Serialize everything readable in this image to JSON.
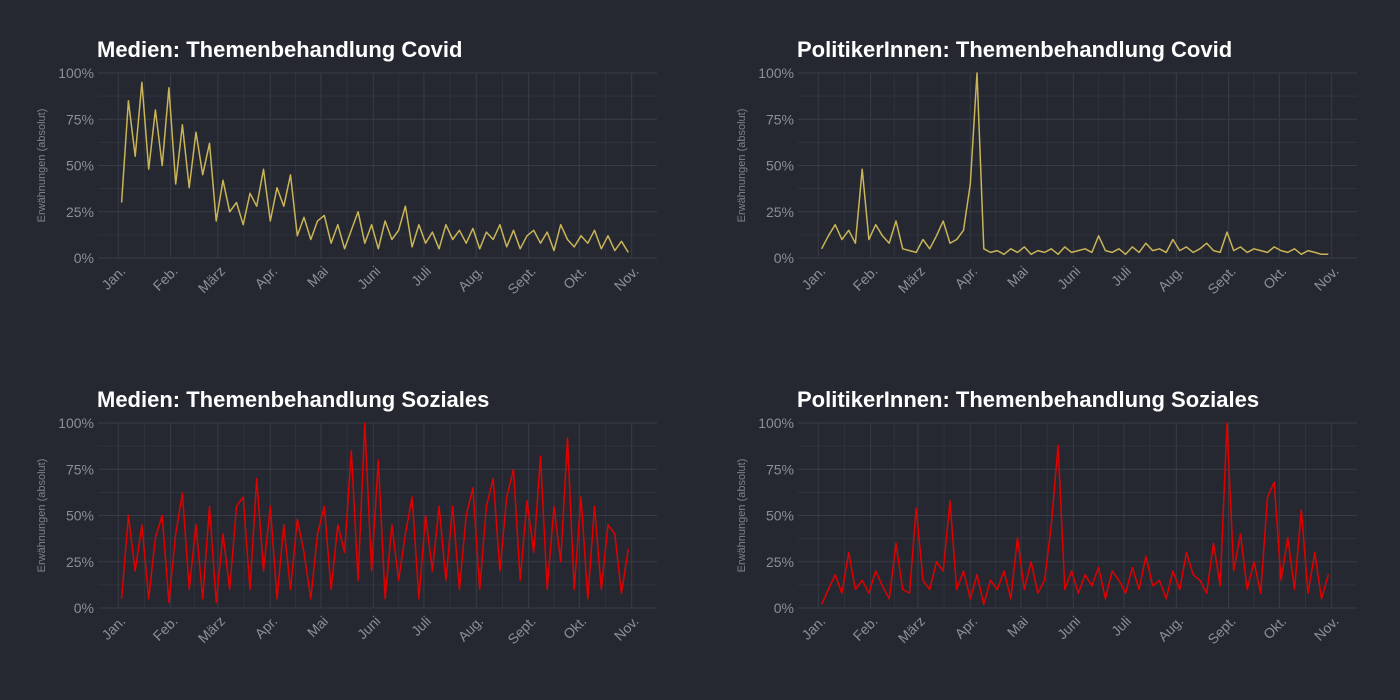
{
  "chart_data": [
    {
      "type": "line",
      "title": "Medien: Themenbehandlung Covid",
      "y_label": "Erwähnungen (absolut)",
      "color": "#c9b458",
      "grid": true,
      "xlim": [
        -11,
        320
      ],
      "ylim": [
        0,
        100
      ],
      "xticks": [
        {
          "value": 1,
          "label": "Jan."
        },
        {
          "value": 32,
          "label": "Feb."
        },
        {
          "value": 60,
          "label": "März"
        },
        {
          "value": 91,
          "label": "Apr."
        },
        {
          "value": 121,
          "label": "Mai"
        },
        {
          "value": 152,
          "label": "Juni"
        },
        {
          "value": 182,
          "label": "Juli"
        },
        {
          "value": 213,
          "label": "Aug."
        },
        {
          "value": 244,
          "label": "Sept."
        },
        {
          "value": 274,
          "label": "Okt."
        },
        {
          "value": 305,
          "label": "Nov."
        }
      ],
      "yticks": [
        {
          "value": 0,
          "label": "0%"
        },
        {
          "value": 25,
          "label": "25%"
        },
        {
          "value": 50,
          "label": "50%"
        },
        {
          "value": 75,
          "label": "75%"
        },
        {
          "value": 100,
          "label": "100%"
        }
      ],
      "x": [
        3,
        7,
        11,
        15,
        19,
        23,
        27,
        31,
        35,
        39,
        43,
        47,
        51,
        55,
        59,
        63,
        67,
        71,
        75,
        79,
        83,
        87,
        91,
        95,
        99,
        103,
        107,
        111,
        115,
        119,
        123,
        127,
        131,
        135,
        139,
        143,
        147,
        151,
        155,
        159,
        163,
        167,
        171,
        175,
        179,
        183,
        187,
        191,
        195,
        199,
        203,
        207,
        211,
        215,
        219,
        223,
        227,
        231,
        235,
        239,
        243,
        247,
        251,
        255,
        259,
        263,
        267,
        271,
        275,
        279,
        283,
        287,
        291,
        295,
        299,
        303
      ],
      "values": [
        30,
        85,
        55,
        95,
        48,
        80,
        50,
        92,
        40,
        72,
        38,
        68,
        45,
        62,
        20,
        42,
        25,
        30,
        18,
        35,
        28,
        48,
        20,
        38,
        28,
        45,
        12,
        22,
        10,
        20,
        23,
        8,
        18,
        5,
        15,
        25,
        8,
        18,
        5,
        20,
        10,
        15,
        28,
        6,
        18,
        8,
        14,
        5,
        18,
        10,
        15,
        8,
        16,
        5,
        14,
        10,
        18,
        6,
        15,
        5,
        12,
        15,
        8,
        14,
        4,
        18,
        10,
        6,
        12,
        8,
        15,
        5,
        12,
        4,
        9,
        3
      ]
    },
    {
      "type": "line",
      "title": "PolitikerInnen: Themenbehandlung Covid",
      "y_label": "Erwähnungen (absolut)",
      "color": "#c9b458",
      "grid": true,
      "xlim": [
        -11,
        320
      ],
      "ylim": [
        0,
        100
      ],
      "xticks": [
        {
          "value": 1,
          "label": "Jan."
        },
        {
          "value": 32,
          "label": "Feb."
        },
        {
          "value": 60,
          "label": "März"
        },
        {
          "value": 91,
          "label": "Apr."
        },
        {
          "value": 121,
          "label": "Mai"
        },
        {
          "value": 152,
          "label": "Juni"
        },
        {
          "value": 182,
          "label": "Juli"
        },
        {
          "value": 213,
          "label": "Aug."
        },
        {
          "value": 244,
          "label": "Sept."
        },
        {
          "value": 274,
          "label": "Okt."
        },
        {
          "value": 305,
          "label": "Nov."
        }
      ],
      "yticks": [
        {
          "value": 0,
          "label": "0%"
        },
        {
          "value": 25,
          "label": "25%"
        },
        {
          "value": 50,
          "label": "50%"
        },
        {
          "value": 75,
          "label": "75%"
        },
        {
          "value": 100,
          "label": "100%"
        }
      ],
      "x": [
        3,
        7,
        11,
        15,
        19,
        23,
        27,
        31,
        35,
        39,
        43,
        47,
        51,
        55,
        59,
        63,
        67,
        71,
        75,
        79,
        83,
        87,
        91,
        95,
        99,
        103,
        107,
        111,
        115,
        119,
        123,
        127,
        131,
        135,
        139,
        143,
        147,
        151,
        155,
        159,
        163,
        167,
        171,
        175,
        179,
        183,
        187,
        191,
        195,
        199,
        203,
        207,
        211,
        215,
        219,
        223,
        227,
        231,
        235,
        239,
        243,
        247,
        251,
        255,
        259,
        263,
        267,
        271,
        275,
        279,
        283,
        287,
        291,
        295,
        299,
        303
      ],
      "values": [
        5,
        12,
        18,
        10,
        15,
        8,
        48,
        10,
        18,
        12,
        8,
        20,
        5,
        4,
        3,
        10,
        5,
        12,
        20,
        8,
        10,
        15,
        40,
        100,
        5,
        3,
        4,
        2,
        5,
        3,
        6,
        2,
        4,
        3,
        5,
        2,
        6,
        3,
        4,
        5,
        3,
        12,
        4,
        3,
        5,
        2,
        6,
        3,
        8,
        4,
        5,
        3,
        10,
        4,
        6,
        3,
        5,
        8,
        4,
        3,
        14,
        4,
        6,
        3,
        5,
        4,
        3,
        6,
        4,
        3,
        5,
        2,
        4,
        3,
        2,
        2
      ]
    },
    {
      "type": "line",
      "title": "Medien: Themenbehandlung Soziales",
      "y_label": "Erwähnungen (absolut)",
      "color": "#e00000",
      "grid": true,
      "xlim": [
        -11,
        320
      ],
      "ylim": [
        0,
        100
      ],
      "xticks": [
        {
          "value": 1,
          "label": "Jan."
        },
        {
          "value": 32,
          "label": "Feb."
        },
        {
          "value": 60,
          "label": "März"
        },
        {
          "value": 91,
          "label": "Apr."
        },
        {
          "value": 121,
          "label": "Mai"
        },
        {
          "value": 152,
          "label": "Juni"
        },
        {
          "value": 182,
          "label": "Juli"
        },
        {
          "value": 213,
          "label": "Aug."
        },
        {
          "value": 244,
          "label": "Sept."
        },
        {
          "value": 274,
          "label": "Okt."
        },
        {
          "value": 305,
          "label": "Nov."
        }
      ],
      "yticks": [
        {
          "value": 0,
          "label": "0%"
        },
        {
          "value": 25,
          "label": "25%"
        },
        {
          "value": 50,
          "label": "50%"
        },
        {
          "value": 75,
          "label": "75%"
        },
        {
          "value": 100,
          "label": "100%"
        }
      ],
      "x": [
        3,
        7,
        11,
        15,
        19,
        23,
        27,
        31,
        35,
        39,
        43,
        47,
        51,
        55,
        59,
        63,
        67,
        71,
        75,
        79,
        83,
        87,
        91,
        95,
        99,
        103,
        107,
        111,
        115,
        119,
        123,
        127,
        131,
        135,
        139,
        143,
        147,
        151,
        155,
        159,
        163,
        167,
        171,
        175,
        179,
        183,
        187,
        191,
        195,
        199,
        203,
        207,
        211,
        215,
        219,
        223,
        227,
        231,
        235,
        239,
        243,
        247,
        251,
        255,
        259,
        263,
        267,
        271,
        275,
        279,
        283,
        287,
        291,
        295,
        299,
        303
      ],
      "values": [
        5,
        50,
        20,
        45,
        5,
        38,
        50,
        3,
        40,
        62,
        10,
        45,
        5,
        55,
        3,
        40,
        10,
        55,
        60,
        10,
        70,
        20,
        55,
        5,
        45,
        10,
        48,
        30,
        5,
        40,
        55,
        10,
        45,
        30,
        85,
        15,
        100,
        20,
        80,
        5,
        45,
        15,
        40,
        60,
        5,
        50,
        20,
        55,
        15,
        55,
        10,
        50,
        65,
        10,
        55,
        70,
        20,
        60,
        75,
        15,
        58,
        30,
        82,
        10,
        55,
        25,
        92,
        10,
        60,
        5,
        55,
        10,
        45,
        40,
        8,
        32
      ]
    },
    {
      "type": "line",
      "title": "PolitikerInnen: Themenbehandlung Soziales",
      "y_label": "Erwähnungen (absolut)",
      "color": "#e00000",
      "grid": true,
      "xlim": [
        -11,
        320
      ],
      "ylim": [
        0,
        100
      ],
      "xticks": [
        {
          "value": 1,
          "label": "Jan."
        },
        {
          "value": 32,
          "label": "Feb."
        },
        {
          "value": 60,
          "label": "März"
        },
        {
          "value": 91,
          "label": "Apr."
        },
        {
          "value": 121,
          "label": "Mai"
        },
        {
          "value": 152,
          "label": "Juni"
        },
        {
          "value": 182,
          "label": "Juli"
        },
        {
          "value": 213,
          "label": "Aug."
        },
        {
          "value": 244,
          "label": "Sept."
        },
        {
          "value": 274,
          "label": "Okt."
        },
        {
          "value": 305,
          "label": "Nov."
        }
      ],
      "yticks": [
        {
          "value": 0,
          "label": "0%"
        },
        {
          "value": 25,
          "label": "25%"
        },
        {
          "value": 50,
          "label": "50%"
        },
        {
          "value": 75,
          "label": "75%"
        },
        {
          "value": 100,
          "label": "100%"
        }
      ],
      "x": [
        3,
        7,
        11,
        15,
        19,
        23,
        27,
        31,
        35,
        39,
        43,
        47,
        51,
        55,
        59,
        63,
        67,
        71,
        75,
        79,
        83,
        87,
        91,
        95,
        99,
        103,
        107,
        111,
        115,
        119,
        123,
        127,
        131,
        135,
        139,
        143,
        147,
        151,
        155,
        159,
        163,
        167,
        171,
        175,
        179,
        183,
        187,
        191,
        195,
        199,
        203,
        207,
        211,
        215,
        219,
        223,
        227,
        231,
        235,
        239,
        243,
        247,
        251,
        255,
        259,
        263,
        267,
        271,
        275,
        279,
        283,
        287,
        291,
        295,
        299,
        303
      ],
      "values": [
        2,
        10,
        18,
        8,
        30,
        10,
        15,
        8,
        20,
        12,
        5,
        35,
        10,
        8,
        54,
        15,
        10,
        25,
        20,
        58,
        10,
        20,
        5,
        18,
        2,
        15,
        10,
        20,
        5,
        38,
        10,
        25,
        8,
        15,
        45,
        88,
        10,
        20,
        8,
        18,
        12,
        22,
        5,
        20,
        15,
        8,
        22,
        10,
        28,
        12,
        15,
        5,
        20,
        10,
        30,
        18,
        15,
        8,
        35,
        12,
        100,
        20,
        40,
        10,
        25,
        8,
        60,
        68,
        15,
        38,
        10,
        53,
        8,
        30,
        5,
        18
      ]
    }
  ]
}
